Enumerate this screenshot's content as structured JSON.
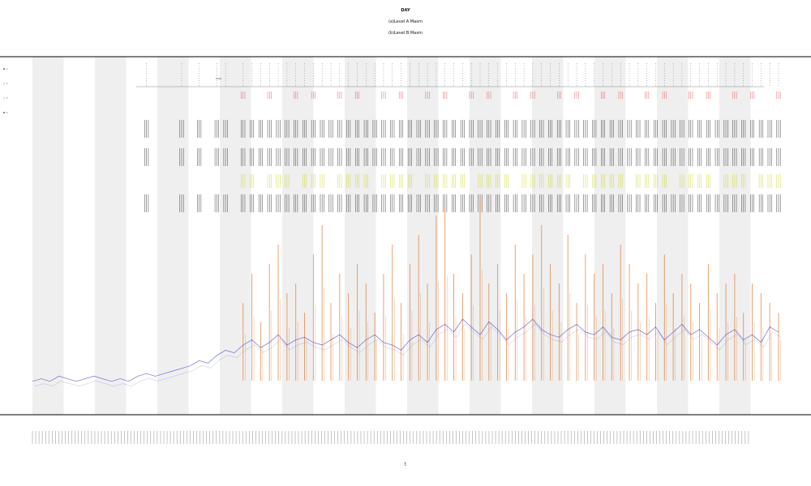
{
  "chart_data": {
    "type": "line",
    "title": "DAY",
    "subtitle_1": "(a)Level A Maxm",
    "subtitle_2": "(b)Level B Maxm",
    "xlabel": "t",
    "ylabel": "",
    "grid": false,
    "legend_position": "top-left",
    "legend_labels": [
      "■ 1",
      "□ 2",
      "□ 3",
      "■ 4"
    ],
    "annotation_tag": "ROAD",
    "shaded_bands": 12,
    "series": [
      {
        "name": "",
        "color": "#2d35c9",
        "render": "line",
        "values": [
          6,
          7,
          6,
          8,
          7,
          6,
          7,
          8,
          7,
          6,
          7,
          6,
          8,
          9,
          8,
          9,
          10,
          11,
          12,
          14,
          13,
          16,
          18,
          17,
          20,
          22,
          19,
          21,
          24,
          20,
          22,
          23,
          21,
          20,
          22,
          24,
          21,
          19,
          22,
          24,
          21,
          20,
          18,
          22,
          24,
          21,
          26,
          28,
          25,
          30,
          27,
          24,
          29,
          26,
          22,
          25,
          27,
          30,
          26,
          24,
          23,
          26,
          28,
          25,
          24,
          27,
          23,
          22,
          25,
          26,
          24,
          27,
          22,
          25,
          28,
          24,
          26,
          23,
          20,
          24,
          26,
          22,
          24,
          21,
          27,
          25
        ]
      },
      {
        "name": "",
        "color": "#e0752d",
        "render": "spikes",
        "values": [
          0,
          0,
          0,
          0,
          0,
          0,
          0,
          0,
          0,
          0,
          0,
          0,
          0,
          0,
          0,
          0,
          0,
          0,
          0,
          0,
          0,
          0,
          0,
          0,
          40,
          55,
          30,
          60,
          70,
          45,
          50,
          35,
          65,
          80,
          40,
          55,
          45,
          60,
          50,
          35,
          55,
          70,
          40,
          60,
          75,
          50,
          85,
          90,
          55,
          45,
          65,
          95,
          50,
          60,
          45,
          70,
          55,
          65,
          80,
          60,
          50,
          75,
          40,
          65,
          55,
          60,
          45,
          70,
          60,
          50,
          55,
          40,
          65,
          45,
          55,
          50,
          40,
          60,
          45,
          50,
          55,
          35,
          50,
          45,
          40,
          35
        ]
      },
      {
        "name": "",
        "color": "#111111",
        "render": "ticks",
        "values": [
          0,
          0,
          0,
          0,
          0,
          0,
          0,
          0,
          0,
          0,
          0,
          0,
          0,
          1,
          0,
          0,
          0,
          1,
          0,
          1,
          0,
          1,
          1,
          0,
          1,
          1,
          1,
          1,
          1,
          1,
          1,
          1,
          1,
          1,
          1,
          1,
          1,
          1,
          1,
          1,
          1,
          1,
          1,
          1,
          1,
          1,
          1,
          1,
          1,
          1,
          1,
          1,
          1,
          1,
          1,
          1,
          1,
          1,
          1,
          1,
          1,
          1,
          1,
          1,
          1,
          1,
          1,
          1,
          1,
          1,
          1,
          1,
          1,
          1,
          1,
          1,
          1,
          1,
          1,
          1,
          1,
          1,
          1,
          1,
          1,
          1
        ]
      },
      {
        "name": "",
        "color": "#c8d000",
        "render": "ticks",
        "values": [
          0,
          0,
          0,
          0,
          0,
          0,
          0,
          0,
          0,
          0,
          0,
          0,
          0,
          0,
          0,
          0,
          0,
          0,
          0,
          0,
          0,
          0,
          0,
          0,
          1,
          1,
          0,
          1,
          1,
          1,
          0,
          1,
          1,
          1,
          0,
          1,
          1,
          1,
          1,
          0,
          1,
          1,
          1,
          1,
          0,
          1,
          1,
          1,
          1,
          1,
          0,
          1,
          1,
          1,
          1,
          0,
          1,
          1,
          1,
          1,
          1,
          1,
          0,
          1,
          1,
          1,
          1,
          1,
          0,
          1,
          1,
          1,
          1,
          0,
          1,
          1,
          1,
          1,
          0,
          1,
          1,
          1,
          0,
          1,
          1,
          1
        ]
      },
      {
        "name": "",
        "color": "#e53b3b",
        "render": "ticks",
        "values": [
          0,
          0,
          0,
          0,
          0,
          0,
          0,
          0,
          0,
          0,
          0,
          0,
          0,
          0,
          0,
          0,
          0,
          0,
          0,
          0,
          0,
          0,
          0,
          0,
          1,
          0,
          0,
          1,
          0,
          0,
          1,
          0,
          1,
          0,
          0,
          1,
          0,
          1,
          0,
          0,
          1,
          0,
          1,
          0,
          0,
          1,
          0,
          1,
          0,
          0,
          1,
          0,
          1,
          0,
          0,
          1,
          0,
          1,
          0,
          0,
          1,
          0,
          1,
          0,
          0,
          1,
          0,
          1,
          0,
          0,
          1,
          0,
          1,
          0,
          0,
          1,
          0,
          1,
          0,
          0,
          1,
          0,
          1,
          0,
          0,
          1
        ]
      }
    ]
  },
  "colors": {
    "band": "#efefef",
    "axis": "#333333",
    "pin": "#555555",
    "xtick_text": "#777777"
  }
}
